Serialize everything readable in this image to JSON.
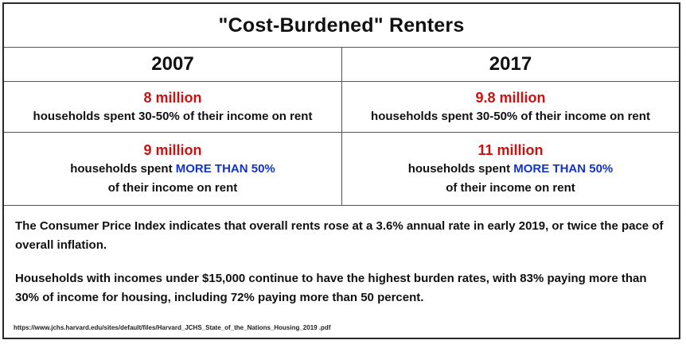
{
  "title": "\"Cost-Burdened\"  Renters",
  "columns": [
    {
      "year": "2007",
      "row1": {
        "amount": "8 million",
        "description": "households spent 30-50% of their income on rent"
      },
      "row2": {
        "amount": "9 million",
        "description_prefix": "households spent ",
        "description_highlight": "MORE THAN 50%",
        "description_suffix": "of their income on rent"
      }
    },
    {
      "year": "2017",
      "row1": {
        "amount": "9.8 million",
        "description": "households spent 30-50% of their income on rent"
      },
      "row2": {
        "amount": "11 million",
        "description_prefix": "households spent ",
        "description_highlight": "MORE THAN 50%",
        "description_suffix": "of their income on rent"
      }
    }
  ],
  "notes": [
    "The Consumer Price Index indicates that overall rents rose at a 3.6% annual rate in early 2019, or twice the pace of overall inflation.",
    "Households with incomes under $15,000 continue to have the highest burden rates, with 83% paying more than 30% of income for housing, including 72% paying more than 50 percent."
  ],
  "source": "https://www.jchs.harvard.edu/sites/default/files/Harvard_JCHS_State_of_the_Nations_Housing_2019   .pdf",
  "colors": {
    "amount": "#cc1111",
    "highlight": "#1133cc"
  }
}
